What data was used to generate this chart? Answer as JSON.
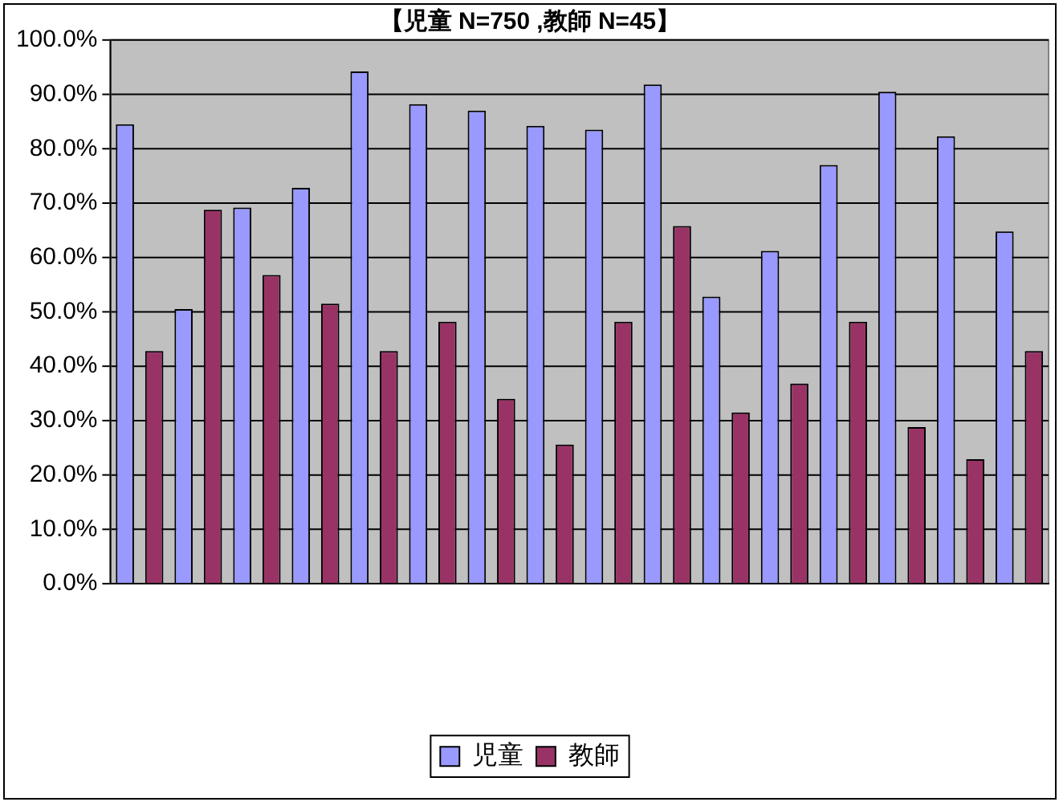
{
  "chart_data": {
    "type": "bar",
    "title": "【児童 N=750 ,教師 N=45】",
    "categories": [
      null,
      null,
      null,
      null,
      null,
      null,
      null,
      null,
      null,
      null,
      null,
      null,
      null,
      null,
      null,
      null
    ],
    "series": [
      {
        "name": "児童",
        "color": "#9999ff",
        "values": [
          84.5,
          50.5,
          69.2,
          72.8,
          94.2,
          88.2,
          87.0,
          84.2,
          83.5,
          91.8,
          52.8,
          61.2,
          77.0,
          90.5,
          82.3,
          64.8
        ]
      },
      {
        "name": "教師",
        "color": "#993366",
        "values": [
          42.8,
          68.8,
          56.8,
          51.5,
          42.8,
          48.2,
          34.0,
          25.6,
          48.2,
          65.8,
          31.5,
          36.8,
          48.2,
          28.8,
          22.9,
          42.8
        ]
      }
    ],
    "ylim": [
      0,
      100
    ],
    "yticks": [
      {
        "value": 0,
        "label": "0.0%"
      },
      {
        "value": 10,
        "label": "10.0%"
      },
      {
        "value": 20,
        "label": "20.0%"
      },
      {
        "value": 30,
        "label": "30.0%"
      },
      {
        "value": 40,
        "label": "40.0%"
      },
      {
        "value": 50,
        "label": "50.0%"
      },
      {
        "value": 60,
        "label": "60.0%"
      },
      {
        "value": 70,
        "label": "70.0%"
      },
      {
        "value": 80,
        "label": "80.0%"
      },
      {
        "value": 90,
        "label": "90.0%"
      },
      {
        "value": 100,
        "label": "100.0%"
      }
    ],
    "grid": "y",
    "legend": "bottom"
  }
}
